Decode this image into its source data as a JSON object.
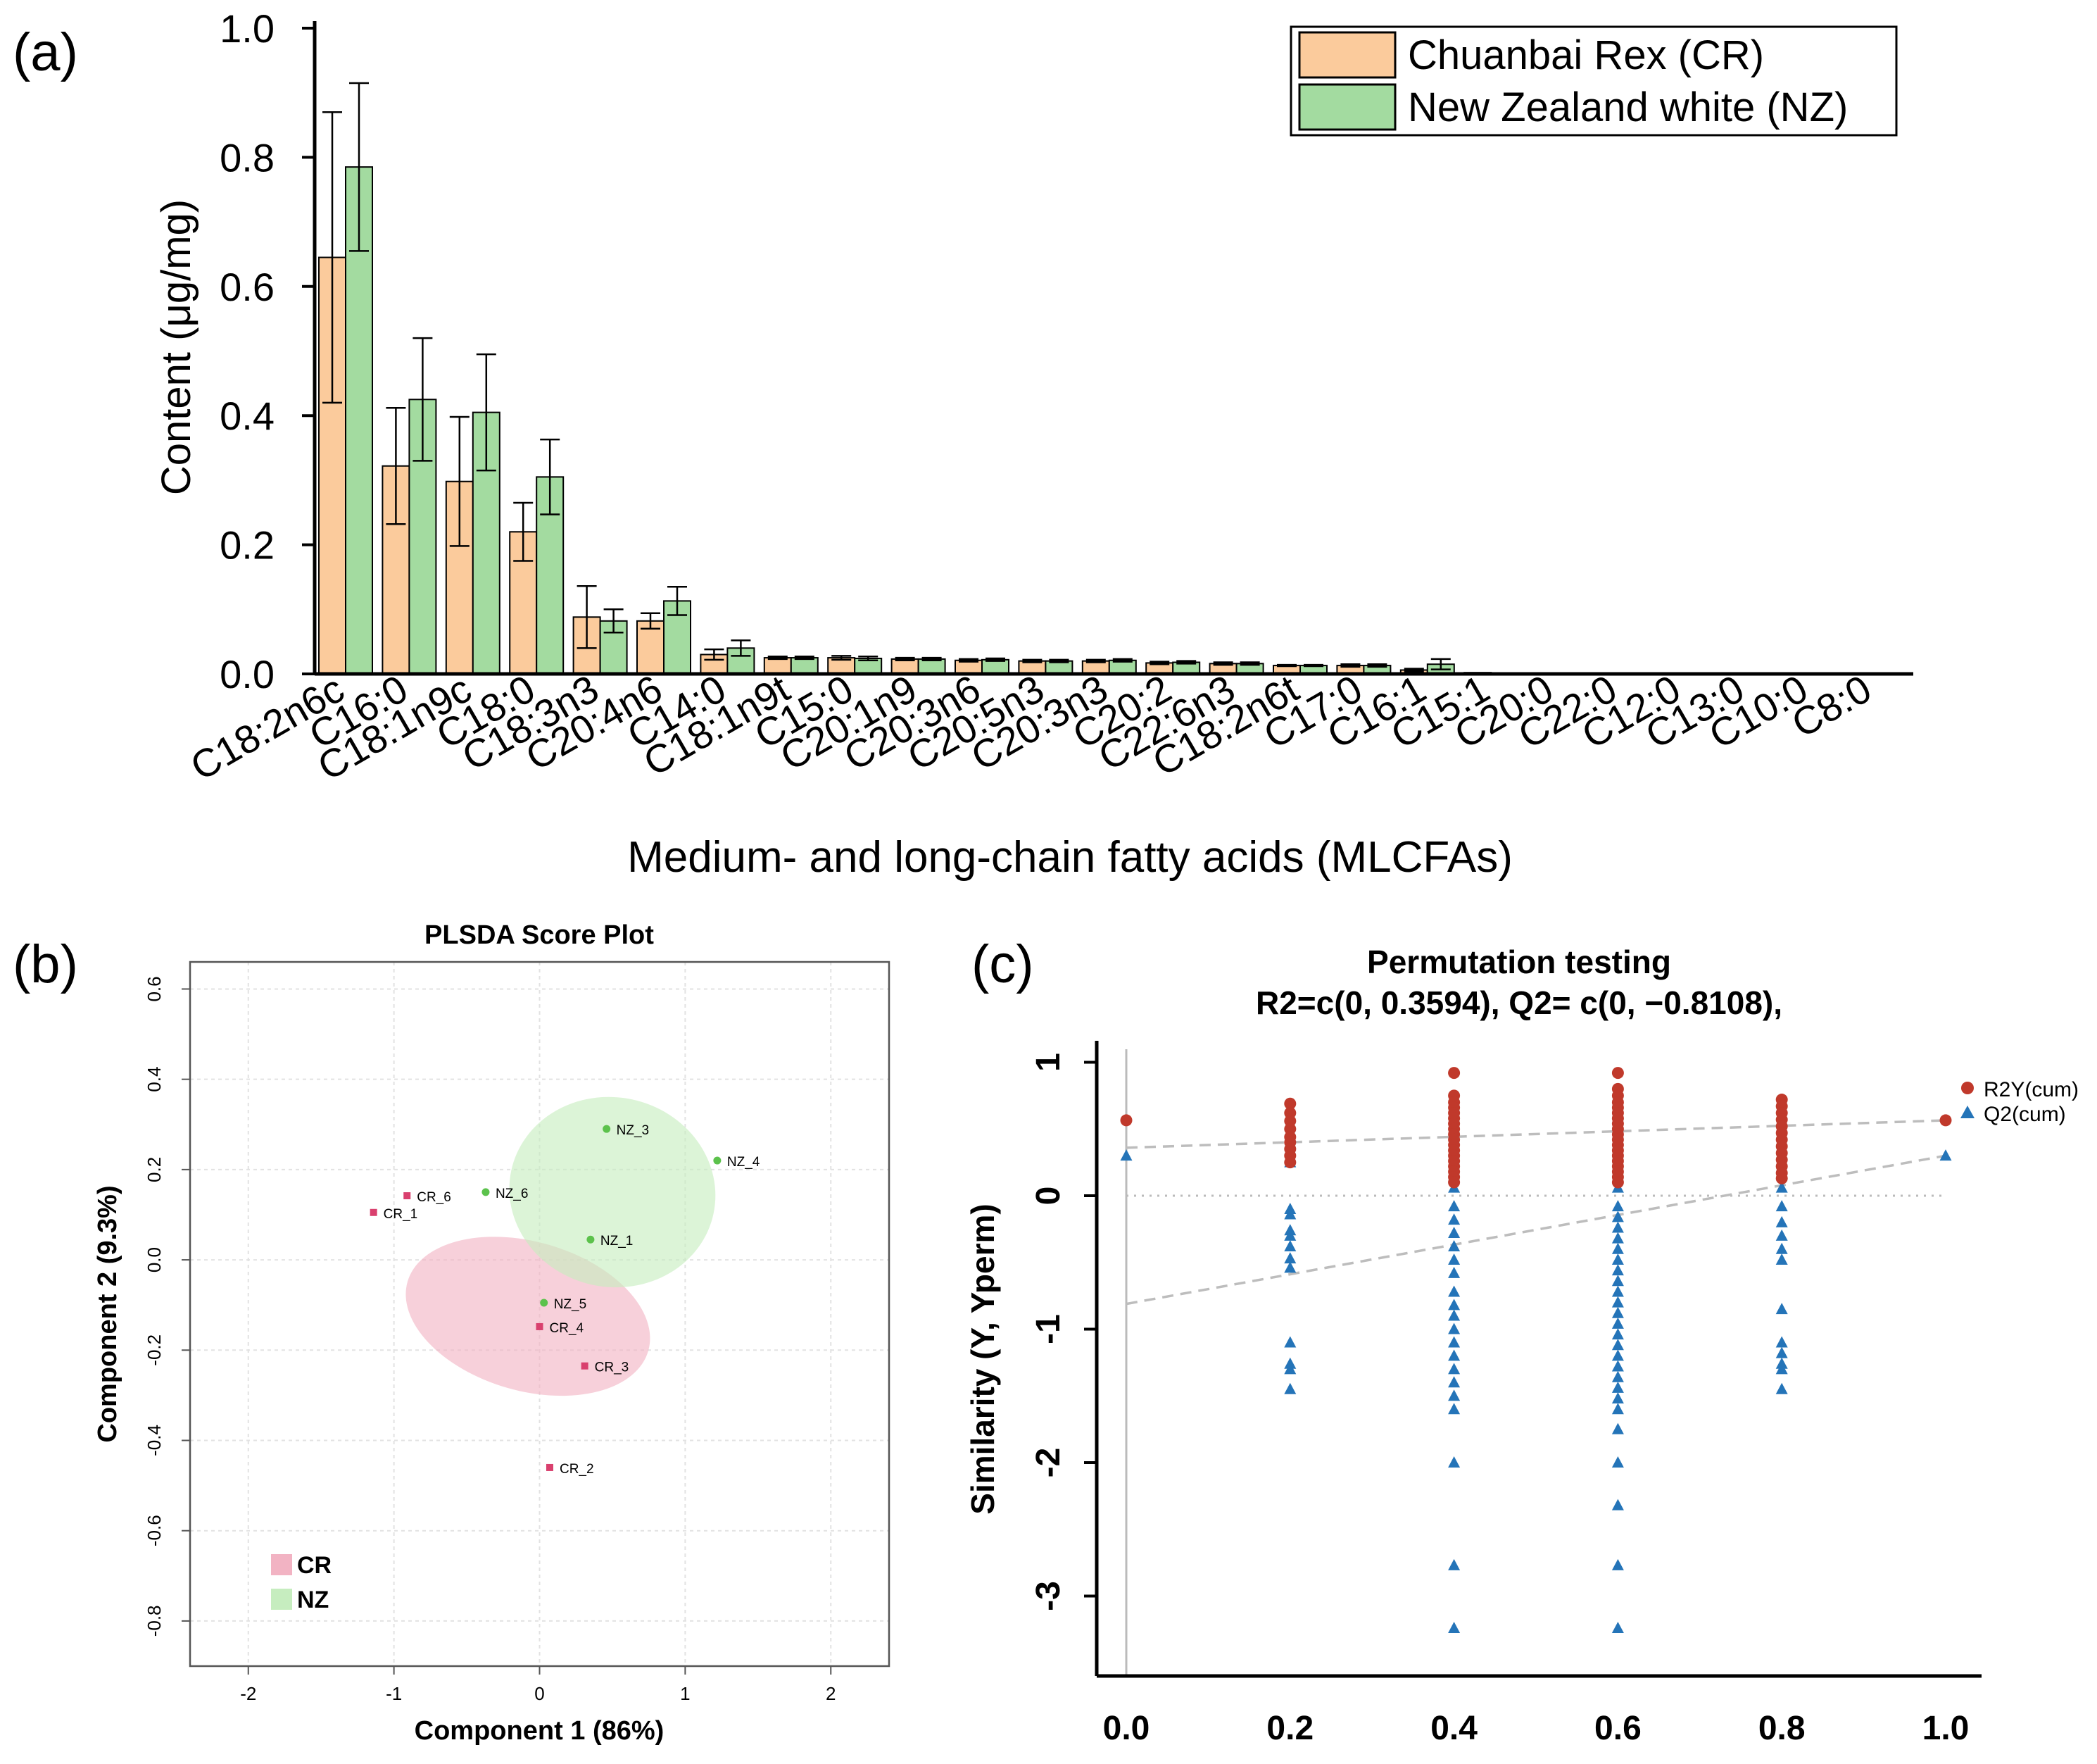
{
  "panels": {
    "a": {
      "label": "(a)"
    },
    "b": {
      "label": "(b)"
    },
    "c": {
      "label": "(c)"
    }
  },
  "colors": {
    "cr_bar": "#FBCB9C",
    "nz_bar": "#A3DBA0",
    "cr_ellipse": "#F2B3C3",
    "nz_ellipse": "#C6EDBF",
    "cr_point": "#D9406E",
    "nz_point": "#5CC24C",
    "r2y": "#C0392B",
    "q2": "#2474B8"
  },
  "chart_data": [
    {
      "type": "bar",
      "title": "",
      "xlabel": "Medium- and long-chain fatty acids (MLCFAs)",
      "ylabel": "Content (μg/mg)",
      "ylim": [
        0,
        1.0
      ],
      "yticks": [
        "0.0",
        "0.2",
        "0.4",
        "0.6",
        "0.8",
        "1.0"
      ],
      "grid": false,
      "legend_position": "top-right",
      "categories": [
        "C18:2n6c",
        "C16:0",
        "C18:1n9c",
        "C18:0",
        "C18:3n3",
        "C20:4n6",
        "C14:0",
        "C18:1n9t",
        "C15:0",
        "C20:1n9",
        "C20:3n6",
        "C20:5n3",
        "C20:3n3",
        "C20:2",
        "C22:6n3",
        "C18:2n6t",
        "C17:0",
        "C16:1",
        "C15:1",
        "C20:0",
        "C22:0",
        "C12:0",
        "C13:0",
        "C10:0",
        "C8:0"
      ],
      "series": [
        {
          "name": "Chuanbai Rex (CR)",
          "values": [
            0.645,
            0.322,
            0.298,
            0.22,
            0.088,
            0.082,
            0.03,
            0.025,
            0.025,
            0.023,
            0.021,
            0.02,
            0.02,
            0.017,
            0.016,
            0.013,
            0.013,
            0.006,
            0.002,
            0.001,
            0.001,
            0.001,
            0.0005,
            0.0005,
            0.0005
          ],
          "errors": [
            0.225,
            0.09,
            0.1,
            0.045,
            0.048,
            0.012,
            0.008,
            0.002,
            0.003,
            0.002,
            0.002,
            0.002,
            0.002,
            0.002,
            0.002,
            0.001,
            0.002,
            0.002,
            0.0005,
            0.0005,
            0.0005,
            0.0005,
            0.0,
            0.0,
            0.0
          ]
        },
        {
          "name": "New Zealand white (NZ)",
          "values": [
            0.785,
            0.425,
            0.405,
            0.305,
            0.082,
            0.113,
            0.04,
            0.025,
            0.024,
            0.023,
            0.022,
            0.02,
            0.021,
            0.018,
            0.016,
            0.013,
            0.013,
            0.015,
            0.001,
            0.001,
            0.001,
            0.0005,
            0.0005,
            0.0005,
            0.0005
          ],
          "errors": [
            0.13,
            0.095,
            0.09,
            0.058,
            0.018,
            0.022,
            0.012,
            0.002,
            0.003,
            0.002,
            0.002,
            0.002,
            0.002,
            0.002,
            0.002,
            0.001,
            0.002,
            0.008,
            0.0005,
            0.0005,
            0.0005,
            0.0,
            0.0,
            0.0,
            0.0
          ]
        }
      ]
    },
    {
      "type": "scatter",
      "title": "PLSDA Score Plot",
      "xlabel": "Component 1 (86%)",
      "ylabel": "Component 2 (9.3%)",
      "xlim": [
        -2.4,
        2.4
      ],
      "ylim": [
        -0.9,
        0.66
      ],
      "xticks": [
        "-2",
        "-1",
        "0",
        "1",
        "2"
      ],
      "yticks": [
        "-0.8",
        "-0.6",
        "-0.4",
        "-0.2",
        "0.0",
        "0.2",
        "0.4",
        "0.6"
      ],
      "grid": true,
      "legend_position": "bottom-left",
      "series": [
        {
          "name": "CR",
          "points": [
            {
              "label": "CR_1",
              "x": -1.14,
              "y": 0.105
            },
            {
              "label": "CR_2",
              "x": 0.07,
              "y": -0.46
            },
            {
              "label": "CR_3",
              "x": 0.31,
              "y": -0.235
            },
            {
              "label": "CR_4",
              "x": 0.0,
              "y": -0.148
            },
            {
              "label": "CR_6",
              "x": -0.91,
              "y": 0.142
            }
          ],
          "ellipse": {
            "cx": -0.08,
            "cy": -0.125,
            "rx": 1.72,
            "ry": 0.165,
            "angle_deg": -16
          }
        },
        {
          "name": "NZ",
          "points": [
            {
              "label": "NZ_1",
              "x": 0.35,
              "y": 0.045
            },
            {
              "label": "NZ_3",
              "x": 0.46,
              "y": 0.29
            },
            {
              "label": "NZ_4",
              "x": 1.22,
              "y": 0.22
            },
            {
              "label": "NZ_5",
              "x": 0.03,
              "y": -0.095
            },
            {
              "label": "NZ_6",
              "x": -0.37,
              "y": 0.15
            }
          ],
          "ellipse": {
            "cx": 0.5,
            "cy": 0.15,
            "rx": 1.42,
            "ry": 0.21,
            "angle_deg": -12
          }
        }
      ]
    },
    {
      "type": "scatter",
      "title": "Permutation testing",
      "subtitle": "R2=c(0, 0.3594), Q2= c(0, −0.8108),",
      "xlabel": "",
      "ylabel": "Similarity (Y, Yperm)",
      "xlim": [
        -0.02,
        1.05
      ],
      "ylim": [
        -3.5,
        1.18
      ],
      "xticks": [
        "0.0",
        "0.2",
        "0.4",
        "0.6",
        "0.8",
        "1.0"
      ],
      "yticks": [
        "-3",
        "-2",
        "-1",
        "0",
        "1"
      ],
      "grid": false,
      "legend_position": "top-right",
      "regression": {
        "R2Y": {
          "intercept": 0.3594,
          "end": [
            1.0,
            0.565
          ]
        },
        "Q2": {
          "intercept": -0.8108,
          "end": [
            1.0,
            0.3
          ]
        }
      },
      "series": [
        {
          "name": "R2Y(cum)",
          "points": [
            [
              0.0,
              0.565
            ],
            [
              0.2,
              0.69
            ],
            [
              0.2,
              0.62
            ],
            [
              0.2,
              0.56
            ],
            [
              0.2,
              0.5
            ],
            [
              0.2,
              0.44
            ],
            [
              0.2,
              0.4
            ],
            [
              0.2,
              0.35
            ],
            [
              0.2,
              0.3
            ],
            [
              0.2,
              0.25
            ],
            [
              0.4,
              0.92
            ],
            [
              0.4,
              0.75
            ],
            [
              0.4,
              0.7
            ],
            [
              0.4,
              0.66
            ],
            [
              0.4,
              0.62
            ],
            [
              0.4,
              0.58
            ],
            [
              0.4,
              0.54
            ],
            [
              0.4,
              0.5
            ],
            [
              0.4,
              0.46
            ],
            [
              0.4,
              0.42
            ],
            [
              0.4,
              0.38
            ],
            [
              0.4,
              0.34
            ],
            [
              0.4,
              0.3
            ],
            [
              0.4,
              0.26
            ],
            [
              0.4,
              0.22
            ],
            [
              0.4,
              0.18
            ],
            [
              0.4,
              0.14
            ],
            [
              0.4,
              0.1
            ],
            [
              0.6,
              0.92
            ],
            [
              0.6,
              0.8
            ],
            [
              0.6,
              0.75
            ],
            [
              0.6,
              0.7
            ],
            [
              0.6,
              0.66
            ],
            [
              0.6,
              0.62
            ],
            [
              0.6,
              0.58
            ],
            [
              0.6,
              0.54
            ],
            [
              0.6,
              0.5
            ],
            [
              0.6,
              0.46
            ],
            [
              0.6,
              0.42
            ],
            [
              0.6,
              0.38
            ],
            [
              0.6,
              0.34
            ],
            [
              0.6,
              0.3
            ],
            [
              0.6,
              0.26
            ],
            [
              0.6,
              0.22
            ],
            [
              0.6,
              0.18
            ],
            [
              0.6,
              0.14
            ],
            [
              0.6,
              0.1
            ],
            [
              0.8,
              0.72
            ],
            [
              0.8,
              0.67
            ],
            [
              0.8,
              0.62
            ],
            [
              0.8,
              0.57
            ],
            [
              0.8,
              0.52
            ],
            [
              0.8,
              0.47
            ],
            [
              0.8,
              0.42
            ],
            [
              0.8,
              0.37
            ],
            [
              0.8,
              0.32
            ],
            [
              0.8,
              0.27
            ],
            [
              0.8,
              0.22
            ],
            [
              0.8,
              0.17
            ],
            [
              0.8,
              0.13
            ],
            [
              1.0,
              0.565
            ]
          ]
        },
        {
          "name": "Q2(cum)",
          "points": [
            [
              0.0,
              0.3
            ],
            [
              0.2,
              0.25
            ],
            [
              0.2,
              -0.1
            ],
            [
              0.2,
              -0.14
            ],
            [
              0.2,
              -0.26
            ],
            [
              0.2,
              -0.3
            ],
            [
              0.2,
              -0.38
            ],
            [
              0.2,
              -0.47
            ],
            [
              0.2,
              -0.54
            ],
            [
              0.2,
              -1.1
            ],
            [
              0.2,
              -1.26
            ],
            [
              0.2,
              -1.3
            ],
            [
              0.2,
              -1.45
            ],
            [
              0.4,
              0.06
            ],
            [
              0.4,
              -0.08
            ],
            [
              0.4,
              -0.18
            ],
            [
              0.4,
              -0.28
            ],
            [
              0.4,
              -0.38
            ],
            [
              0.4,
              -0.48
            ],
            [
              0.4,
              -0.58
            ],
            [
              0.4,
              -0.72
            ],
            [
              0.4,
              -0.82
            ],
            [
              0.4,
              -0.9
            ],
            [
              0.4,
              -1.0
            ],
            [
              0.4,
              -1.1
            ],
            [
              0.4,
              -1.2
            ],
            [
              0.4,
              -1.3
            ],
            [
              0.4,
              -1.4
            ],
            [
              0.4,
              -1.5
            ],
            [
              0.4,
              -1.6
            ],
            [
              0.4,
              -2.0
            ],
            [
              0.4,
              -2.77
            ],
            [
              0.4,
              -3.24
            ],
            [
              0.6,
              0.06
            ],
            [
              0.6,
              -0.08
            ],
            [
              0.6,
              -0.16
            ],
            [
              0.6,
              -0.24
            ],
            [
              0.6,
              -0.32
            ],
            [
              0.6,
              -0.4
            ],
            [
              0.6,
              -0.48
            ],
            [
              0.6,
              -0.56
            ],
            [
              0.6,
              -0.64
            ],
            [
              0.6,
              -0.72
            ],
            [
              0.6,
              -0.8
            ],
            [
              0.6,
              -0.88
            ],
            [
              0.6,
              -0.96
            ],
            [
              0.6,
              -1.04
            ],
            [
              0.6,
              -1.12
            ],
            [
              0.6,
              -1.2
            ],
            [
              0.6,
              -1.28
            ],
            [
              0.6,
              -1.36
            ],
            [
              0.6,
              -1.44
            ],
            [
              0.6,
              -1.52
            ],
            [
              0.6,
              -1.6
            ],
            [
              0.6,
              -1.75
            ],
            [
              0.6,
              -2.0
            ],
            [
              0.6,
              -2.32
            ],
            [
              0.6,
              -2.77
            ],
            [
              0.6,
              -3.24
            ],
            [
              0.8,
              0.06
            ],
            [
              0.8,
              -0.08
            ],
            [
              0.8,
              -0.2
            ],
            [
              0.8,
              -0.3
            ],
            [
              0.8,
              -0.4
            ],
            [
              0.8,
              -0.48
            ],
            [
              0.8,
              -0.85
            ],
            [
              0.8,
              -1.1
            ],
            [
              0.8,
              -1.18
            ],
            [
              0.8,
              -1.26
            ],
            [
              0.8,
              -1.3
            ],
            [
              0.8,
              -1.45
            ],
            [
              1.0,
              0.3
            ]
          ]
        }
      ]
    }
  ]
}
